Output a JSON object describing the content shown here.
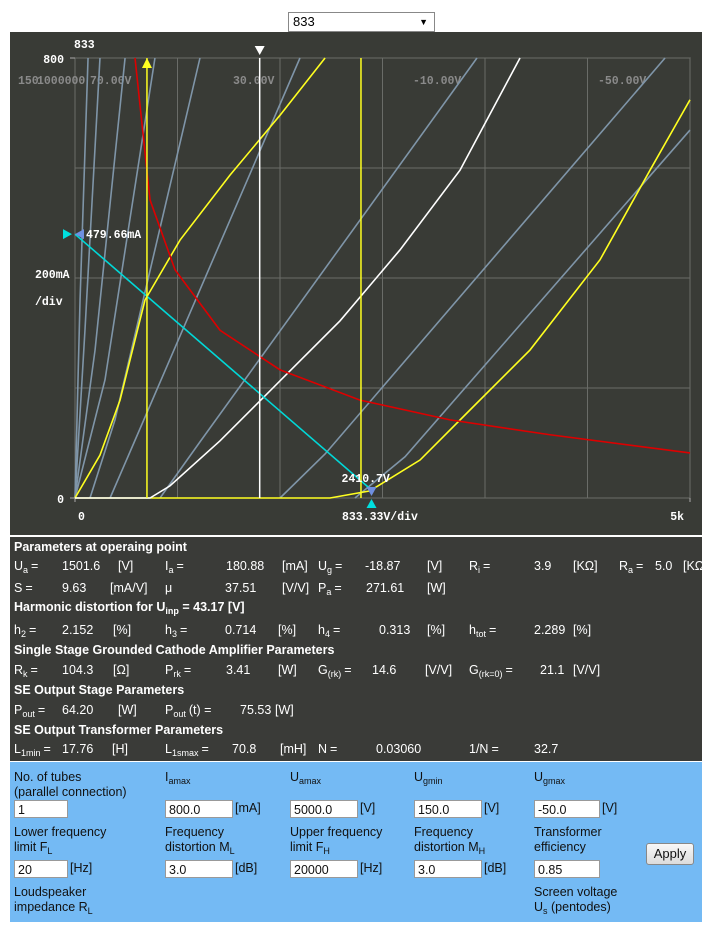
{
  "select": {
    "value": "833"
  },
  "chart_data": {
    "type": "line",
    "tube_label": "833",
    "xlim": [
      0,
      5000
    ],
    "ylim": [
      0,
      800
    ],
    "xticks": [
      0,
      {
        "value": 5000,
        "label": "5k"
      }
    ],
    "yticks": [
      0,
      800
    ],
    "xgrid": [
      0,
      833.33,
      1666.67,
      2500,
      3333.33,
      4166.67,
      5000
    ],
    "ygrid": [
      0,
      200,
      400,
      600,
      800
    ],
    "x_div_label": "833.33V/div",
    "y_div_label": [
      "200mA",
      "/div"
    ],
    "curve_labels": [
      "150",
      "1000000",
      "70.00V",
      "30.00V",
      "-10.00V",
      "-50.00V"
    ],
    "series": [
      {
        "color": "#7f95a8",
        "points": [
          [
            0,
            0
          ],
          [
            41,
            360
          ],
          [
            106,
            800
          ]
        ]
      },
      {
        "color": "#7f95a8",
        "points": [
          [
            0,
            0
          ],
          [
            81,
            305
          ],
          [
            203,
            800
          ]
        ]
      },
      {
        "color": "#7f95a8",
        "points": [
          [
            0,
            0
          ],
          [
            163,
            269
          ],
          [
            407,
            800
          ]
        ]
      },
      {
        "color": "#7f95a8",
        "points": [
          [
            0,
            0
          ],
          [
            244,
            215
          ],
          [
            650,
            800
          ]
        ]
      },
      {
        "color": "#7f95a8",
        "points": [
          [
            122,
            0
          ],
          [
            325,
            142
          ],
          [
            1016,
            800
          ]
        ]
      },
      {
        "color": "#7f95a8",
        "points": [
          [
            285,
            0
          ],
          [
            488,
            105
          ],
          [
            1829,
            800
          ]
        ]
      },
      {
        "color": "#7f95a8",
        "points": [
          [
            691,
            0
          ],
          [
            1016,
            102
          ],
          [
            3268,
            800
          ]
        ]
      },
      {
        "color": "#7f95a8",
        "points": [
          [
            1667,
            0
          ],
          [
            2033,
            80
          ],
          [
            4797,
            800
          ]
        ]
      },
      {
        "color": "#7f95a8",
        "points": [
          [
            2276,
            0
          ],
          [
            2683,
            75
          ],
          [
            5000,
            669
          ]
        ]
      },
      {
        "color": "#ffff20",
        "points": [
          [
            0,
            0
          ],
          [
            203,
            78
          ],
          [
            366,
            178
          ],
          [
            569,
            360
          ],
          [
            854,
            469
          ],
          [
            1260,
            587
          ],
          [
            1667,
            696
          ],
          [
            2033,
            800
          ]
        ]
      },
      {
        "color": "#ffff20",
        "points": [
          [
            0,
            0
          ],
          [
            2073,
            0
          ],
          [
            2398,
            13
          ],
          [
            2805,
            69
          ],
          [
            3211,
            160
          ],
          [
            3699,
            269
          ],
          [
            4268,
            433
          ],
          [
            4675,
            596
          ],
          [
            5000,
            724
          ]
        ]
      },
      {
        "color": "#ffffff",
        "points": [
          [
            0,
            0
          ],
          [
            610,
            0
          ],
          [
            772,
            22
          ],
          [
            1179,
            104
          ],
          [
            1667,
            213
          ],
          [
            2154,
            322
          ],
          [
            2642,
            451
          ],
          [
            3130,
            596
          ],
          [
            3618,
            800
          ]
        ]
      },
      {
        "color": "#dd0000",
        "points": [
          [
            488,
            800
          ],
          [
            610,
            542
          ],
          [
            813,
            415
          ],
          [
            1179,
            305
          ],
          [
            1667,
            233
          ],
          [
            2317,
            178
          ],
          [
            3049,
            142
          ],
          [
            3862,
            115
          ],
          [
            5000,
            82
          ]
        ]
      },
      {
        "color": "#00d8d8",
        "points": [
          [
            0,
            479.66
          ],
          [
            2410.7,
            14.5
          ]
        ]
      }
    ],
    "verticals": [
      {
        "x": 585,
        "color": "#ffff20"
      },
      {
        "x": 2325,
        "color": "#ffff20"
      },
      {
        "x": 1501.6,
        "color": "#ffffff"
      }
    ],
    "current_marker": {
      "value": 479.66,
      "label": "479.66mA"
    },
    "voltage_marker": {
      "value": 2410.7,
      "label": "2410.7V"
    }
  },
  "params": [
    {
      "heading": {
        "text": "Parameters at operaing point"
      },
      "rows": [
        [
          {
            "sym": "U",
            "sub": "a",
            "eq": "=",
            "value": "1501.6",
            "unit": "[V]"
          },
          {
            "sym": "I",
            "sub": "a",
            "eq": "=",
            "value": "180.88",
            "unit": "[mA]"
          },
          {
            "sym": "U",
            "sub": "g",
            "eq": "=",
            "value": "-18.87",
            "unit": "[V]"
          },
          {
            "sym": "R",
            "sub": "i",
            "eq": "=",
            "value": "3.9",
            "unit": "[KΩ]"
          },
          {
            "sym": "R",
            "sub": "a",
            "eq": "=",
            "value": "5.0",
            "unit": "[KΩ]"
          }
        ],
        [
          {
            "sym": "S",
            "eq": "=",
            "value": "9.63",
            "unit": "[mA/V]"
          },
          {
            "sym": "μ",
            "value": "37.51",
            "unit": "[V/V]"
          },
          {
            "sym": "P",
            "sub": "a",
            "eq": "=",
            "value": "271.61",
            "unit": "[W]"
          }
        ]
      ]
    },
    {
      "heading": {
        "text": "Harmonic distortion for U",
        "sub": "inp",
        "post": " = 43.17 [V]"
      },
      "rows": [
        [
          {
            "sym": "h",
            "sub": "2",
            "eq": "=",
            "value": "2.152",
            "unit": "[%]"
          },
          {
            "sym": "h",
            "sub": "3",
            "eq": "=",
            "value": "0.714",
            "unit": "[%]"
          },
          {
            "sym": "h",
            "sub": "4",
            "eq": "=",
            "value": "0.313",
            "unit": "[%]"
          },
          {
            "sym": "h",
            "sub": "tot",
            "eq": "=",
            "value": "2.289",
            "unit": "[%]"
          }
        ]
      ]
    },
    {
      "heading": {
        "text": "Single Stage Grounded Cathode Amplifier Parameters"
      },
      "rows": [
        [
          {
            "sym": "R",
            "sub": "k",
            "eq": "=",
            "value": "104.3",
            "unit": "[Ω]"
          },
          {
            "sym": "P",
            "sub": "rk",
            "eq": "=",
            "value": "3.41",
            "unit": "[W]"
          },
          {
            "sym": "G",
            "sub": "(rk)",
            "eq": "=",
            "value": "14.6",
            "unit": "[V/V]"
          },
          {
            "sym": "G",
            "sub": "(rk=0)",
            "eq": "=",
            "value": "21.1",
            "unit": "[V/V]"
          }
        ]
      ]
    },
    {
      "heading": {
        "text": "SE Output Stage Parameters"
      },
      "rows": [
        [
          {
            "sym": "P",
            "sub": "out",
            "eq": "=",
            "value": "64.20",
            "unit": "[W]"
          },
          {
            "sym": "P",
            "sub": "out",
            "eq": "(t) =",
            "value": "75.53",
            "unit": "[W]"
          }
        ]
      ]
    },
    {
      "heading": {
        "text": "SE Output Transformer Parameters"
      },
      "rows": [
        [
          {
            "sym": "L",
            "sub": "1min",
            "eq": "=",
            "value": "17.76",
            "unit": "[H]"
          },
          {
            "sym": "L",
            "sub": "1smax",
            "eq": "=",
            "value": "70.8",
            "unit": "[mH]"
          },
          {
            "sym": "N",
            "eq": "=",
            "value": "0.03060"
          },
          {
            "sym": "1/N",
            "eq": "=",
            "value": "32.7"
          }
        ]
      ]
    }
  ],
  "form": {
    "button": "Apply",
    "rows": [
      [
        {
          "label": [
            {
              "text": "No. of tubes"
            },
            {
              "text": "(parallel connection)"
            }
          ],
          "value": "1"
        },
        {
          "label": [
            {
              "text": "I",
              "sub": "amax"
            }
          ],
          "value": "800.0",
          "unit": "[mA]"
        },
        {
          "label": [
            {
              "text": "U",
              "sub": "amax"
            }
          ],
          "value": "5000.0",
          "unit": "[V]"
        },
        {
          "label": [
            {
              "text": "U",
              "sub": "gmin"
            }
          ],
          "value": "150.0",
          "unit": "[V]"
        },
        {
          "label": [
            {
              "text": "U",
              "sub": "gmax"
            }
          ],
          "value": "-50.0",
          "unit": "[V]"
        }
      ],
      [
        {
          "label": [
            {
              "text": "Lower frequency"
            },
            {
              "text": "limit F",
              "sub": "L"
            }
          ],
          "value": "20",
          "unit": "[Hz]"
        },
        {
          "label": [
            {
              "text": "Frequency"
            },
            {
              "text": "distortion M",
              "sub": "L"
            }
          ],
          "value": "3.0",
          "unit": "[dB]"
        },
        {
          "label": [
            {
              "text": "Upper frequency"
            },
            {
              "text": "limit F",
              "sub": "H"
            }
          ],
          "value": "20000",
          "unit": "[Hz]"
        },
        {
          "label": [
            {
              "text": "Frequency"
            },
            {
              "text": "distortion M",
              "sub": "H"
            }
          ],
          "value": "3.0",
          "unit": "[dB]"
        },
        {
          "label": [
            {
              "text": "Transformer"
            },
            {
              "text": "efficiency"
            }
          ],
          "value": "0.85"
        }
      ],
      [
        {
          "label": [
            {
              "text": "Loudspeaker"
            },
            {
              "text": "impedance R",
              "sub": "L"
            }
          ]
        },
        {
          "label": [
            {
              "text": "Screen voltage"
            },
            {
              "text": "U",
              "sub": "s",
              "post": " (pentodes)"
            }
          ]
        }
      ]
    ]
  }
}
